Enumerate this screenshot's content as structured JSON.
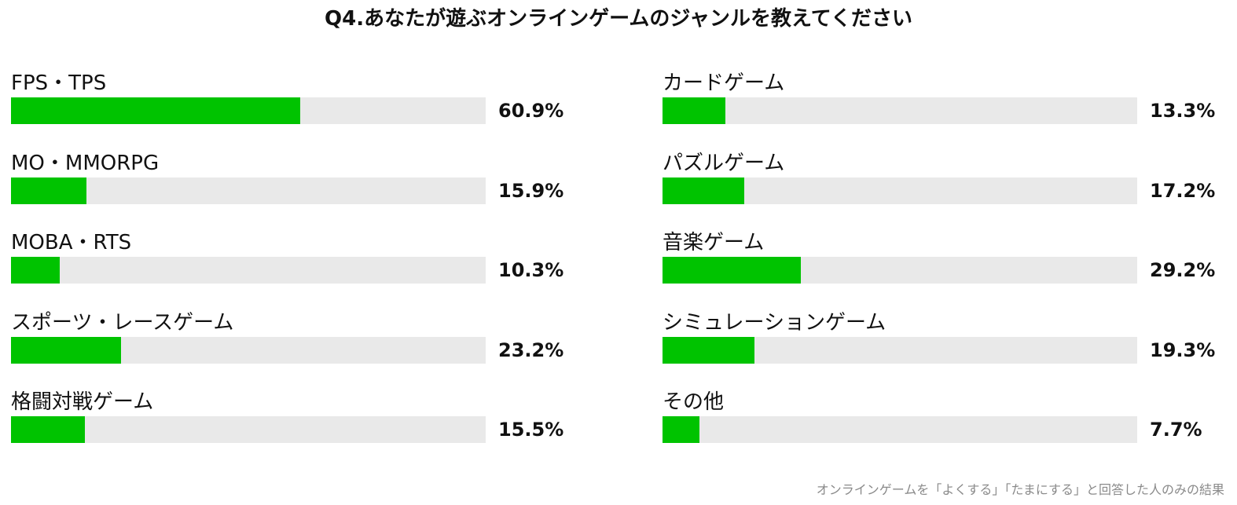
{
  "title": "Q4.あなたが遊ぶオンラインゲームのジャンルを教えてください",
  "footnote": "オンラインゲームを「よくする」「たまにする」と回答した人のみの結果",
  "colors": {
    "bar_fill": "#00c300",
    "bar_track": "#e9e9e9",
    "text": "#111111",
    "footnote": "#8a8a8a"
  },
  "chart_data": {
    "type": "bar",
    "orientation": "horizontal",
    "title": "Q4.あなたが遊ぶオンラインゲームのジャンルを教えてください",
    "xlim": [
      0,
      100
    ],
    "grid": false,
    "legend": "none",
    "columns": [
      {
        "items": [
          {
            "category": "FPS・TPS",
            "value": 60.9,
            "label": "60.9%"
          },
          {
            "category": "MO・MMORPG",
            "value": 15.9,
            "label": "15.9%"
          },
          {
            "category": "MOBA・RTS",
            "value": 10.3,
            "label": "10.3%"
          },
          {
            "category": "スポーツ・レースゲーム",
            "value": 23.2,
            "label": "23.2%"
          },
          {
            "category": "格闘対戦ゲーム",
            "value": 15.5,
            "label": "15.5%"
          }
        ]
      },
      {
        "items": [
          {
            "category": "カードゲーム",
            "value": 13.3,
            "label": "13.3%"
          },
          {
            "category": "パズルゲーム",
            "value": 17.2,
            "label": "17.2%"
          },
          {
            "category": "音楽ゲーム",
            "value": 29.2,
            "label": "29.2%"
          },
          {
            "category": "シミュレーションゲーム",
            "value": 19.3,
            "label": "19.3%"
          },
          {
            "category": "その他",
            "value": 7.7,
            "label": "7.7%"
          }
        ]
      }
    ]
  }
}
